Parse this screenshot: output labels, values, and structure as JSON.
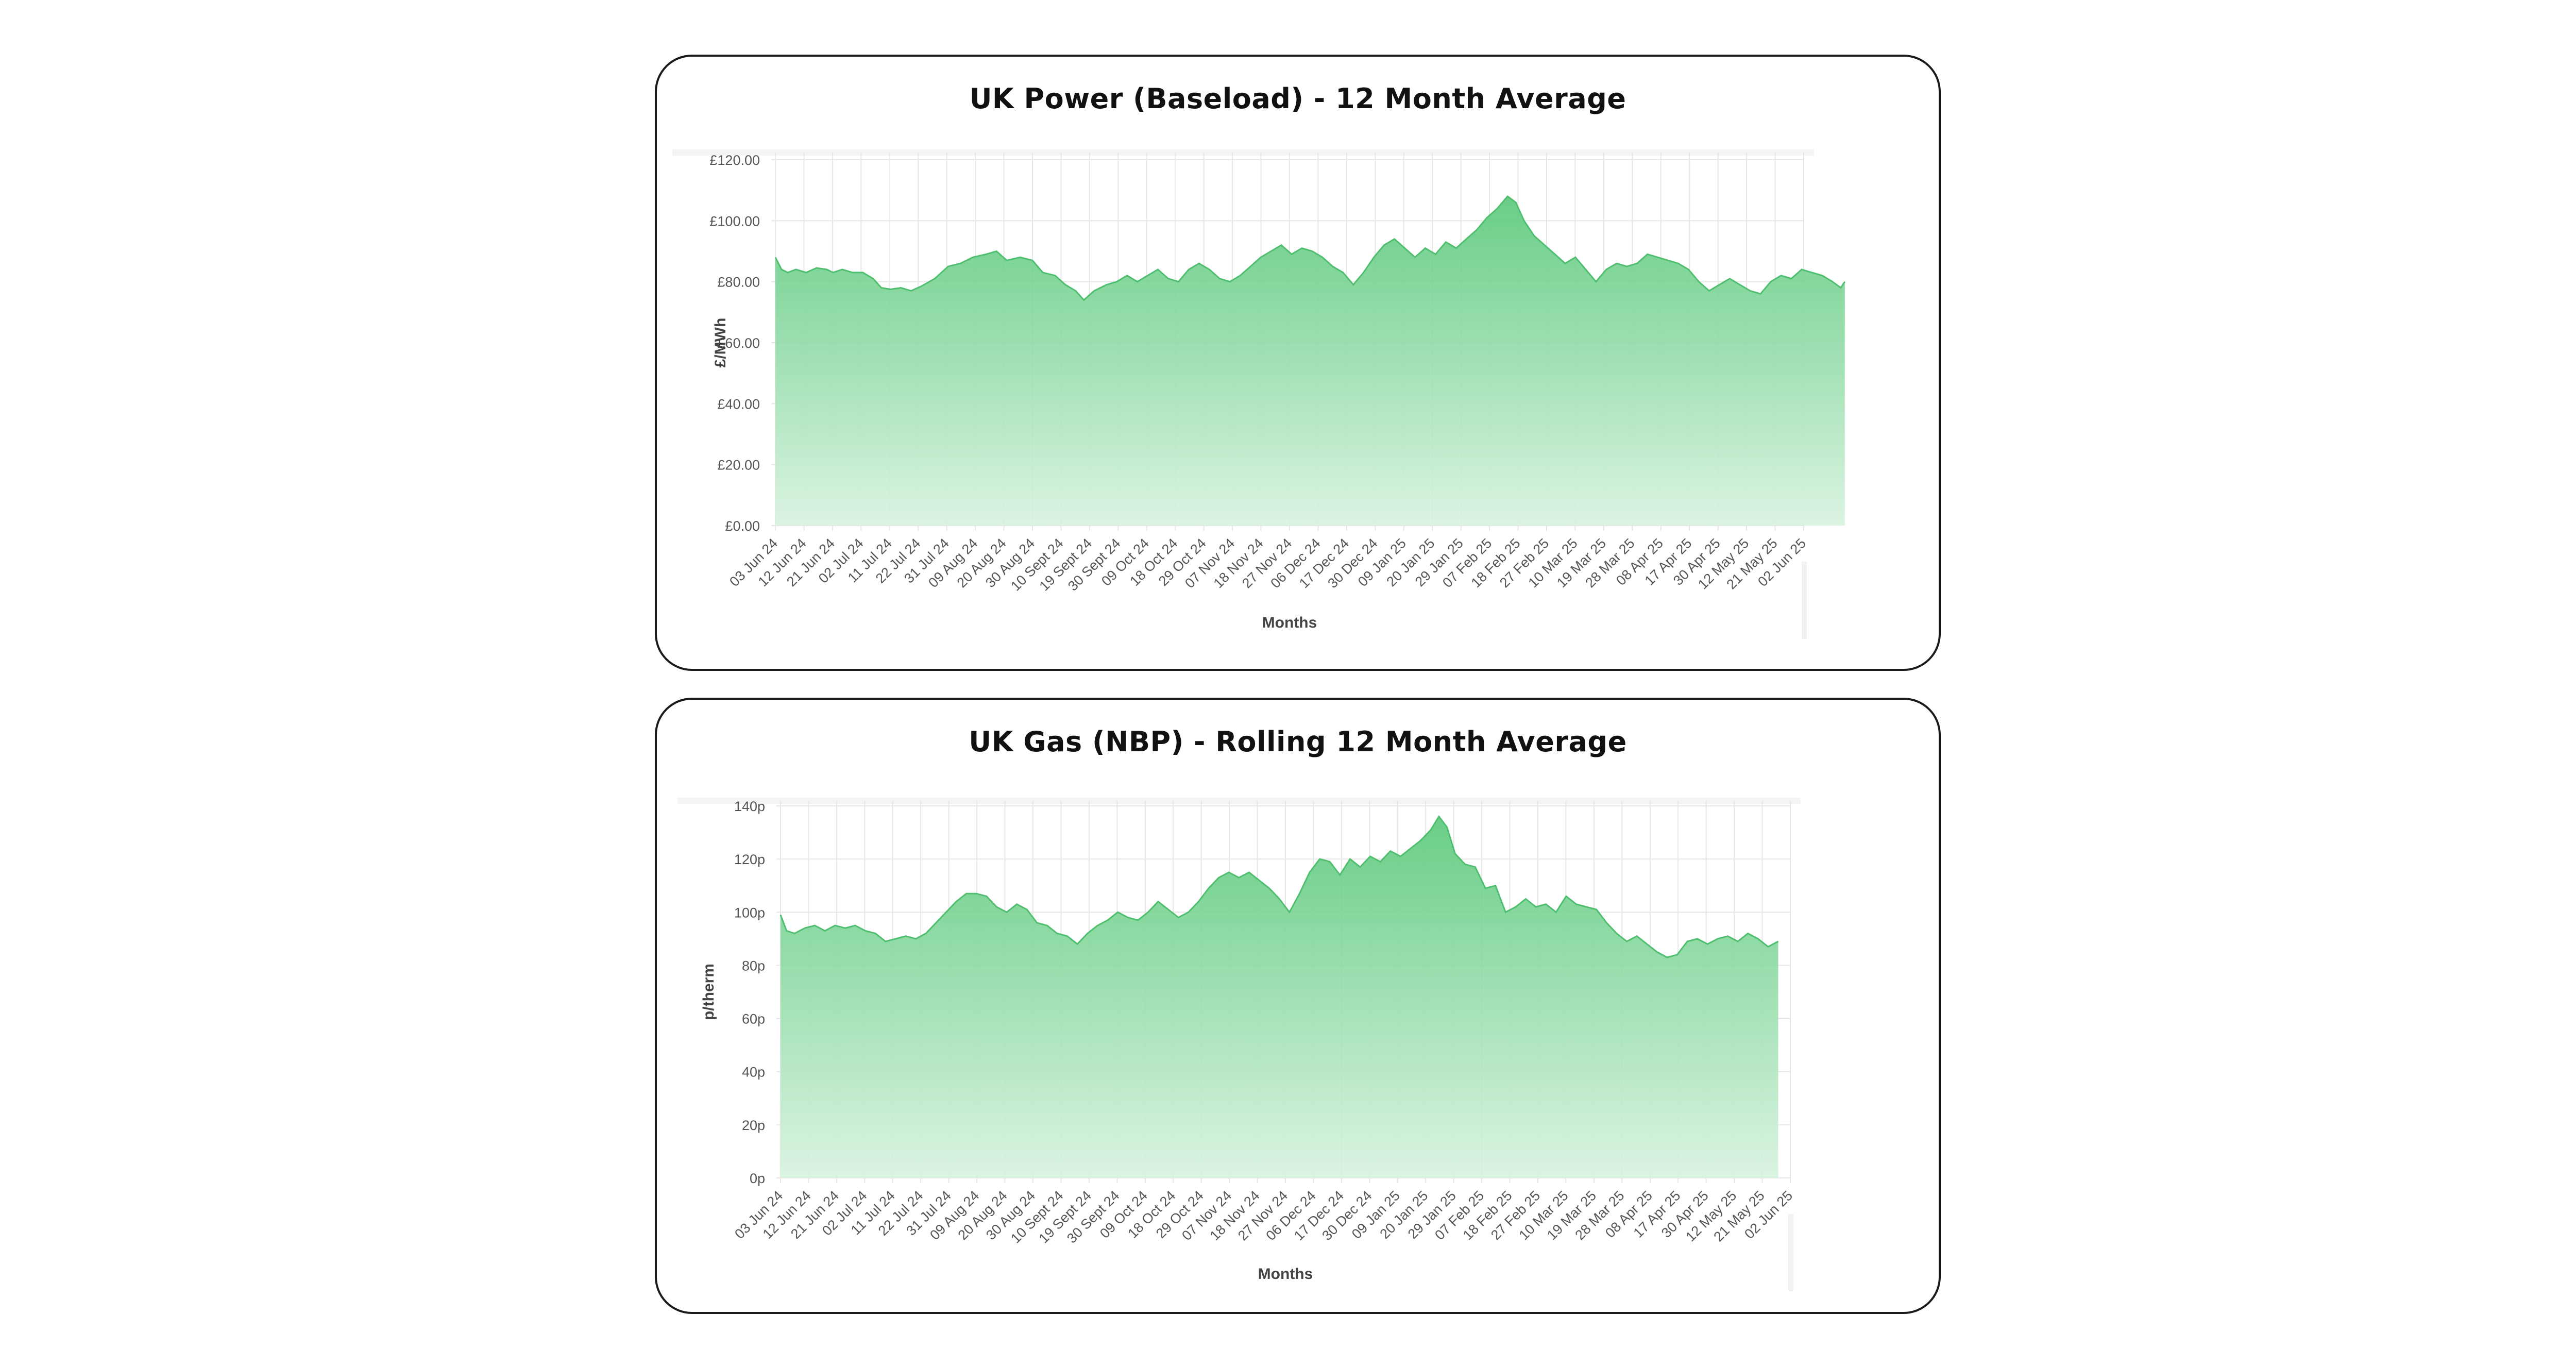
{
  "charts": [
    {
      "title": "UK Power (Baseload) - 12 Month Average",
      "xlabel": "Months",
      "ylabel": "£/MWh"
    },
    {
      "title": "UK Gas (NBP) - Rolling 12 Month Average",
      "xlabel": "Months",
      "ylabel": "p/therm"
    }
  ],
  "colors": {
    "area_top": "#5cc97c",
    "area_bottom": "#d8f3e0",
    "line": "#4fbf6f",
    "grid": "#e6e6e6",
    "axis_text": "#555555",
    "border": "#1a1a1a"
  },
  "chart_data": [
    {
      "type": "area",
      "title": "UK Power (Baseload) - 12 Month Average",
      "xlabel": "Months",
      "ylabel": "£/MWh",
      "ylim": [
        0,
        120
      ],
      "y_ticks": [
        "£0.00",
        "£20.00",
        "£40.00",
        "£60.00",
        "£80.00",
        "£100.00",
        "£120.00"
      ],
      "y_tick_values": [
        0,
        20,
        40,
        60,
        80,
        100,
        120
      ],
      "categories": [
        "03 Jun 24",
        "12 Jun 24",
        "21 Jun 24",
        "02 Jul 24",
        "11 Jul 24",
        "22 Jul 24",
        "31 Jul 24",
        "09 Aug 24",
        "20 Aug 24",
        "30 Aug 24",
        "10 Sept 24",
        "19 Sept 24",
        "30 Sept 24",
        "09 Oct 24",
        "18 Oct 24",
        "29 Oct 24",
        "07 Nov 24",
        "18 Nov 24",
        "27 Nov 24",
        "06 Dec 24",
        "17 Dec 24",
        "30 Dec 24",
        "09 Jan 25",
        "20 Jan 25",
        "29 Jan 25",
        "07 Feb 25",
        "18 Feb 25",
        "27 Feb 25",
        "10 Mar 25",
        "19 Mar 25",
        "28 Mar 25",
        "08 Apr 25",
        "17 Apr 25",
        "30 Apr 25",
        "12 May 25",
        "21 May 25",
        "02 Jun 25"
      ],
      "series": [
        {
          "values": [
            [
              0.0,
              88
            ],
            [
              0.006,
              84
            ],
            [
              0.012,
              83
            ],
            [
              0.02,
              84
            ],
            [
              0.03,
              83
            ],
            [
              0.04,
              84.5
            ],
            [
              0.05,
              84
            ],
            [
              0.056,
              83
            ],
            [
              0.065,
              84
            ],
            [
              0.075,
              83
            ],
            [
              0.085,
              83
            ],
            [
              0.095,
              81
            ],
            [
              0.103,
              78
            ],
            [
              0.112,
              77.5
            ],
            [
              0.122,
              78
            ],
            [
              0.132,
              77
            ],
            [
              0.142,
              78.5
            ],
            [
              0.155,
              81
            ],
            [
              0.168,
              85
            ],
            [
              0.18,
              86
            ],
            [
              0.192,
              88
            ],
            [
              0.205,
              89
            ],
            [
              0.215,
              90
            ],
            [
              0.225,
              87
            ],
            [
              0.238,
              88
            ],
            [
              0.25,
              87
            ],
            [
              0.26,
              83
            ],
            [
              0.272,
              82
            ],
            [
              0.282,
              79
            ],
            [
              0.292,
              77
            ],
            [
              0.3,
              74
            ],
            [
              0.31,
              77
            ],
            [
              0.322,
              79
            ],
            [
              0.332,
              80
            ],
            [
              0.342,
              82
            ],
            [
              0.352,
              80
            ],
            [
              0.362,
              82
            ],
            [
              0.372,
              84
            ],
            [
              0.382,
              81
            ],
            [
              0.392,
              80
            ],
            [
              0.402,
              84
            ],
            [
              0.412,
              86
            ],
            [
              0.422,
              84
            ],
            [
              0.432,
              81
            ],
            [
              0.442,
              80
            ],
            [
              0.452,
              82
            ],
            [
              0.462,
              85
            ],
            [
              0.472,
              88
            ],
            [
              0.482,
              90
            ],
            [
              0.492,
              92
            ],
            [
              0.502,
              89
            ],
            [
              0.512,
              91
            ],
            [
              0.522,
              90
            ],
            [
              0.532,
              88
            ],
            [
              0.542,
              85
            ],
            [
              0.552,
              83
            ],
            [
              0.562,
              79
            ],
            [
              0.572,
              83
            ],
            [
              0.582,
              88
            ],
            [
              0.592,
              92
            ],
            [
              0.602,
              94
            ],
            [
              0.612,
              91
            ],
            [
              0.622,
              88
            ],
            [
              0.632,
              91
            ],
            [
              0.642,
              89
            ],
            [
              0.652,
              93
            ],
            [
              0.662,
              91
            ],
            [
              0.672,
              94
            ],
            [
              0.682,
              97
            ],
            [
              0.692,
              101
            ],
            [
              0.702,
              104
            ],
            [
              0.712,
              108
            ],
            [
              0.72,
              106
            ],
            [
              0.728,
              100
            ],
            [
              0.738,
              95
            ],
            [
              0.748,
              92
            ],
            [
              0.758,
              89
            ],
            [
              0.768,
              86
            ],
            [
              0.778,
              88
            ],
            [
              0.788,
              84
            ],
            [
              0.798,
              80
            ],
            [
              0.808,
              84
            ],
            [
              0.818,
              86
            ],
            [
              0.828,
              85
            ],
            [
              0.838,
              86
            ],
            [
              0.848,
              89
            ],
            [
              0.858,
              88
            ],
            [
              0.868,
              87
            ],
            [
              0.878,
              86
            ],
            [
              0.888,
              84
            ],
            [
              0.898,
              80
            ],
            [
              0.908,
              77
            ],
            [
              0.918,
              79
            ],
            [
              0.928,
              81
            ],
            [
              0.938,
              79
            ],
            [
              0.948,
              77
            ],
            [
              0.958,
              76
            ],
            [
              0.968,
              80
            ],
            [
              0.978,
              82
            ],
            [
              0.988,
              81
            ],
            [
              0.998,
              84
            ],
            [
              1.008,
              83
            ],
            [
              1.018,
              82
            ],
            [
              1.028,
              80
            ],
            [
              1.036,
              78
            ],
            [
              1.04,
              80
            ]
          ]
        }
      ]
    },
    {
      "type": "area",
      "title": "UK Gas (NBP) - Rolling 12 Month Average",
      "xlabel": "Months",
      "ylabel": "p/therm",
      "ylim": [
        0,
        140
      ],
      "y_ticks": [
        "0p",
        "20p",
        "40p",
        "60p",
        "80p",
        "100p",
        "120p",
        "140p"
      ],
      "y_tick_values": [
        0,
        20,
        40,
        60,
        80,
        100,
        120,
        140
      ],
      "categories": [
        "03 Jun 24",
        "12 Jun 24",
        "21 Jun 24",
        "02 Jul 24",
        "11 Jul 24",
        "22 Jul 24",
        "31 Jul 24",
        "09 Aug 24",
        "20 Aug 24",
        "30 Aug 24",
        "10 Sept 24",
        "19 Sept 24",
        "30 Sept 24",
        "09 Oct 24",
        "18 Oct 24",
        "29 Oct 24",
        "07 Nov 24",
        "18 Nov 24",
        "27 Nov 24",
        "06 Dec 24",
        "17 Dec 24",
        "30 Dec 24",
        "09 Jan 25",
        "20 Jan 25",
        "29 Jan 25",
        "07 Feb 25",
        "18 Feb 25",
        "27 Feb 25",
        "10 Mar 25",
        "19 Mar 25",
        "28 Mar 25",
        "08 Apr 25",
        "17 Apr 25",
        "30 Apr 25",
        "12 May 25",
        "21 May 25",
        "02 Jun 25"
      ],
      "series": [
        {
          "values": [
            [
              0.0,
              99
            ],
            [
              0.006,
              93
            ],
            [
              0.014,
              92
            ],
            [
              0.024,
              94
            ],
            [
              0.034,
              95
            ],
            [
              0.044,
              93
            ],
            [
              0.054,
              95
            ],
            [
              0.064,
              94
            ],
            [
              0.074,
              95
            ],
            [
              0.084,
              93
            ],
            [
              0.094,
              92
            ],
            [
              0.104,
              89
            ],
            [
              0.114,
              90
            ],
            [
              0.124,
              91
            ],
            [
              0.134,
              90
            ],
            [
              0.144,
              92
            ],
            [
              0.154,
              96
            ],
            [
              0.164,
              100
            ],
            [
              0.174,
              104
            ],
            [
              0.184,
              107
            ],
            [
              0.194,
              107
            ],
            [
              0.204,
              106
            ],
            [
              0.214,
              102
            ],
            [
              0.224,
              100
            ],
            [
              0.234,
              103
            ],
            [
              0.244,
              101
            ],
            [
              0.254,
              96
            ],
            [
              0.264,
              95
            ],
            [
              0.274,
              92
            ],
            [
              0.284,
              91
            ],
            [
              0.294,
              88
            ],
            [
              0.304,
              92
            ],
            [
              0.314,
              95
            ],
            [
              0.324,
              97
            ],
            [
              0.334,
              100
            ],
            [
              0.344,
              98
            ],
            [
              0.354,
              97
            ],
            [
              0.364,
              100
            ],
            [
              0.374,
              104
            ],
            [
              0.384,
              101
            ],
            [
              0.394,
              98
            ],
            [
              0.404,
              100
            ],
            [
              0.414,
              104
            ],
            [
              0.424,
              109
            ],
            [
              0.434,
              113
            ],
            [
              0.444,
              115
            ],
            [
              0.454,
              113
            ],
            [
              0.464,
              115
            ],
            [
              0.474,
              112
            ],
            [
              0.484,
              109
            ],
            [
              0.494,
              105
            ],
            [
              0.504,
              100
            ],
            [
              0.514,
              107
            ],
            [
              0.524,
              115
            ],
            [
              0.534,
              120
            ],
            [
              0.544,
              119
            ],
            [
              0.554,
              114
            ],
            [
              0.564,
              120
            ],
            [
              0.574,
              117
            ],
            [
              0.584,
              121
            ],
            [
              0.594,
              119
            ],
            [
              0.604,
              123
            ],
            [
              0.614,
              121
            ],
            [
              0.624,
              124
            ],
            [
              0.634,
              127
            ],
            [
              0.644,
              131
            ],
            [
              0.652,
              136
            ],
            [
              0.66,
              132
            ],
            [
              0.668,
              122
            ],
            [
              0.678,
              118
            ],
            [
              0.688,
              117
            ],
            [
              0.698,
              109
            ],
            [
              0.708,
              110
            ],
            [
              0.718,
              100
            ],
            [
              0.728,
              102
            ],
            [
              0.738,
              105
            ],
            [
              0.748,
              102
            ],
            [
              0.758,
              103
            ],
            [
              0.768,
              100
            ],
            [
              0.778,
              106
            ],
            [
              0.788,
              103
            ],
            [
              0.798,
              102
            ],
            [
              0.808,
              101
            ],
            [
              0.818,
              96
            ],
            [
              0.828,
              92
            ],
            [
              0.838,
              89
            ],
            [
              0.848,
              91
            ],
            [
              0.858,
              88
            ],
            [
              0.868,
              85
            ],
            [
              0.878,
              83
            ],
            [
              0.888,
              84
            ],
            [
              0.898,
              89
            ],
            [
              0.908,
              90
            ],
            [
              0.918,
              88
            ],
            [
              0.928,
              90
            ],
            [
              0.938,
              91
            ],
            [
              0.948,
              89
            ],
            [
              0.958,
              92
            ],
            [
              0.968,
              90
            ],
            [
              0.978,
              87
            ],
            [
              0.988,
              89
            ]
          ]
        }
      ]
    }
  ]
}
